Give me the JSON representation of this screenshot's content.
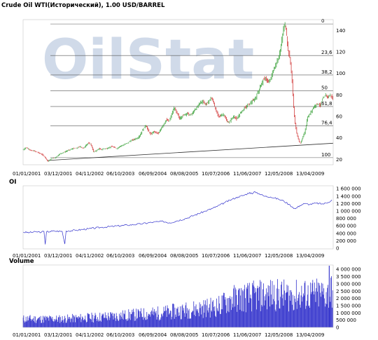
{
  "title": "Crude Oil WTI(Исторический), 1.00 USD/BARREL",
  "watermark": "OilStat",
  "colors": {
    "up": "#2a9a2a",
    "down": "#cc2222",
    "blue": "#3333cc",
    "grid": "#555555",
    "watermark": "#c8d4e6",
    "watermark_gray": "#d6d6d6"
  },
  "date_labels": [
    "01/01/2001",
    "03/12/2001",
    "04/11/2002",
    "06/10/2003",
    "06/09/2004",
    "08/08/2005",
    "10/07/2006",
    "11/06/2007",
    "12/05/2008",
    "13/04/2009"
  ],
  "chart_data": [
    {
      "type": "line",
      "name": "price",
      "x_ticks": [
        "01/01/2001",
        "03/12/2001",
        "04/11/2002",
        "06/10/2003",
        "06/09/2004",
        "08/08/2005",
        "10/07/2006",
        "11/06/2007",
        "12/05/2008",
        "13/04/2009"
      ],
      "y_ticks": [
        20,
        40,
        60,
        80,
        100,
        120,
        140
      ],
      "ylim": [
        15,
        150
      ],
      "fib_levels": [
        {
          "label": "0",
          "value": 146
        },
        {
          "label": "23,6",
          "value": 116.6
        },
        {
          "label": "38,2",
          "value": 98.5
        },
        {
          "label": "50",
          "value": 83.9
        },
        {
          "label": "61,8",
          "value": 69.2
        },
        {
          "label": "76,4",
          "value": 51.1
        },
        {
          "label": "100",
          "value": 21.6
        }
      ],
      "trendline": {
        "from": [
          "03/12/2001",
          19
        ],
        "to": [
          "end",
          35
        ]
      },
      "series": [
        {
          "values": [
            [
              0,
              29
            ],
            [
              4,
              31
            ],
            [
              8,
              30
            ],
            [
              12,
              28
            ],
            [
              16,
              28
            ],
            [
              20,
              27
            ],
            [
              24,
              26
            ],
            [
              28,
              25
            ],
            [
              32,
              23
            ],
            [
              36,
              20
            ],
            [
              38,
              18
            ],
            [
              40,
              19
            ],
            [
              44,
              21
            ],
            [
              48,
              21
            ],
            [
              52,
              23
            ],
            [
              56,
              25
            ],
            [
              60,
              26
            ],
            [
              64,
              27
            ],
            [
              68,
              28
            ],
            [
              72,
              29
            ],
            [
              76,
              30
            ],
            [
              80,
              30
            ],
            [
              84,
              31
            ],
            [
              88,
              32
            ],
            [
              92,
              30
            ],
            [
              96,
              33
            ],
            [
              100,
              35
            ],
            [
              104,
              34
            ],
            [
              108,
              27
            ],
            [
              112,
              28
            ],
            [
              116,
              30
            ],
            [
              120,
              29
            ],
            [
              124,
              30
            ],
            [
              128,
              30
            ],
            [
              132,
              31
            ],
            [
              136,
              32
            ],
            [
              140,
              31
            ],
            [
              144,
              30
            ],
            [
              148,
              32
            ],
            [
              152,
              33
            ],
            [
              156,
              34
            ],
            [
              160,
              35
            ],
            [
              164,
              37
            ],
            [
              168,
              38
            ],
            [
              172,
              39
            ],
            [
              176,
              40
            ],
            [
              180,
              43
            ],
            [
              184,
              48
            ],
            [
              188,
              52
            ],
            [
              192,
              47
            ],
            [
              196,
              43
            ],
            [
              200,
              46
            ],
            [
              204,
              45
            ],
            [
              208,
              44
            ],
            [
              212,
              49
            ],
            [
              216,
              53
            ],
            [
              220,
              57
            ],
            [
              224,
              55
            ],
            [
              228,
              62
            ],
            [
              232,
              68
            ],
            [
              236,
              63
            ],
            [
              240,
              58
            ],
            [
              244,
              60
            ],
            [
              248,
              62
            ],
            [
              252,
              63
            ],
            [
              256,
              61
            ],
            [
              260,
              63
            ],
            [
              264,
              66
            ],
            [
              268,
              70
            ],
            [
              272,
              73
            ],
            [
              276,
              74
            ],
            [
              280,
              71
            ],
            [
              284,
              73
            ],
            [
              288,
              77
            ],
            [
              292,
              74
            ],
            [
              296,
              65
            ],
            [
              300,
              60
            ],
            [
              304,
              61
            ],
            [
              308,
              62
            ],
            [
              312,
              56
            ],
            [
              316,
              54
            ],
            [
              320,
              58
            ],
            [
              324,
              60
            ],
            [
              328,
              57
            ],
            [
              332,
              62
            ],
            [
              336,
              65
            ],
            [
              340,
              68
            ],
            [
              344,
              70
            ],
            [
              348,
              72
            ],
            [
              352,
              74
            ],
            [
              356,
              76
            ],
            [
              360,
              82
            ],
            [
              364,
              88
            ],
            [
              368,
              93
            ],
            [
              372,
              96
            ],
            [
              376,
              91
            ],
            [
              380,
              95
            ],
            [
              384,
              103
            ],
            [
              388,
              108
            ],
            [
              392,
              115
            ],
            [
              396,
              125
            ],
            [
              398,
              135
            ],
            [
              400,
              142
            ],
            [
              402,
              146
            ],
            [
              404,
              138
            ],
            [
              406,
              125
            ],
            [
              408,
              118
            ],
            [
              410,
              112
            ],
            [
              412,
              100
            ],
            [
              414,
              80
            ],
            [
              416,
              62
            ],
            [
              418,
              52
            ],
            [
              420,
              44
            ],
            [
              422,
              40
            ],
            [
              424,
              36
            ],
            [
              426,
              35
            ],
            [
              428,
              38
            ],
            [
              430,
              42
            ],
            [
              432,
              45
            ],
            [
              434,
              50
            ],
            [
              436,
              58
            ],
            [
              440,
              62
            ],
            [
              444,
              67
            ],
            [
              448,
              70
            ],
            [
              452,
              72
            ],
            [
              456,
              70
            ],
            [
              460,
              76
            ],
            [
              464,
              80
            ],
            [
              468,
              78
            ],
            [
              472,
              80
            ],
            [
              476,
              75
            ]
          ]
        }
      ]
    },
    {
      "type": "line",
      "name": "OI",
      "x_ticks": [
        "01/01/2001",
        "03/12/2001",
        "04/11/2002",
        "06/10/2003",
        "06/09/2004",
        "08/08/2005",
        "10/07/2006",
        "11/06/2007",
        "12/05/2008",
        "13/04/2009"
      ],
      "y_ticks": [
        0,
        200000,
        400000,
        600000,
        800000,
        1000000,
        1200000,
        1400000,
        1600000
      ],
      "y_tick_labels": [
        "0",
        "200 000",
        "400 000",
        "600 000",
        "800 000",
        "1 000 000",
        "1 200 000",
        "1 400 000",
        "1 600 000"
      ],
      "ylim": [
        -20000,
        1680000
      ],
      "series": [
        {
          "values": [
            [
              0,
              430000
            ],
            [
              10,
              420000
            ],
            [
              20,
              440000
            ],
            [
              28,
              430000
            ],
            [
              32,
              450000
            ],
            [
              34,
              100000
            ],
            [
              36,
              440000
            ],
            [
              48,
              460000
            ],
            [
              60,
              450000
            ],
            [
              64,
              110000
            ],
            [
              66,
              460000
            ],
            [
              80,
              480000
            ],
            [
              100,
              520000
            ],
            [
              120,
              560000
            ],
            [
              140,
              590000
            ],
            [
              160,
              620000
            ],
            [
              180,
              650000
            ],
            [
              200,
              700000
            ],
            [
              215,
              720000
            ],
            [
              225,
              680000
            ],
            [
              235,
              730000
            ],
            [
              250,
              800000
            ],
            [
              265,
              900000
            ],
            [
              280,
              1000000
            ],
            [
              295,
              1100000
            ],
            [
              310,
              1230000
            ],
            [
              320,
              1310000
            ],
            [
              330,
              1380000
            ],
            [
              340,
              1430000
            ],
            [
              348,
              1500000
            ],
            [
              352,
              1460000
            ],
            [
              356,
              1520000
            ],
            [
              362,
              1470000
            ],
            [
              370,
              1400000
            ],
            [
              380,
              1380000
            ],
            [
              392,
              1320000
            ],
            [
              400,
              1270000
            ],
            [
              408,
              1180000
            ],
            [
              414,
              1100000
            ],
            [
              418,
              1060000
            ],
            [
              425,
              1150000
            ],
            [
              432,
              1200000
            ],
            [
              440,
              1180000
            ],
            [
              450,
              1210000
            ],
            [
              460,
              1190000
            ],
            [
              468,
              1230000
            ],
            [
              474,
              1300000
            ]
          ]
        }
      ]
    },
    {
      "type": "bar",
      "name": "Volume",
      "x_ticks": [
        "01/01/2001",
        "03/12/2001",
        "04/11/2002",
        "06/10/2003",
        "06/09/2004",
        "08/08/2005",
        "10/07/2006",
        "11/06/2007",
        "12/05/2008",
        "13/04/2009"
      ],
      "y_ticks": [
        0,
        500000,
        1000000,
        1500000,
        2000000,
        2500000,
        3000000,
        3500000,
        4000000
      ],
      "y_tick_labels": [
        "0",
        "500 000",
        "1 000 000",
        "1 500 000",
        "2 000 000",
        "2 500 000",
        "3 000 000",
        "3 500 000",
        "4 000 000"
      ],
      "ylim": [
        0,
        4300000
      ],
      "envelope": [
        [
          0,
          800000
        ],
        [
          60,
          800000
        ],
        [
          110,
          950000
        ],
        [
          160,
          1150000
        ],
        [
          210,
          1350000
        ],
        [
          260,
          1700000
        ],
        [
          300,
          2000000
        ],
        [
          320,
          2700000
        ],
        [
          345,
          2900000
        ],
        [
          380,
          3100000
        ],
        [
          420,
          3000000
        ],
        [
          470,
          3200000
        ],
        [
          476,
          3600000
        ]
      ],
      "peak": {
        "x": 470,
        "value": 4250000
      }
    }
  ]
}
